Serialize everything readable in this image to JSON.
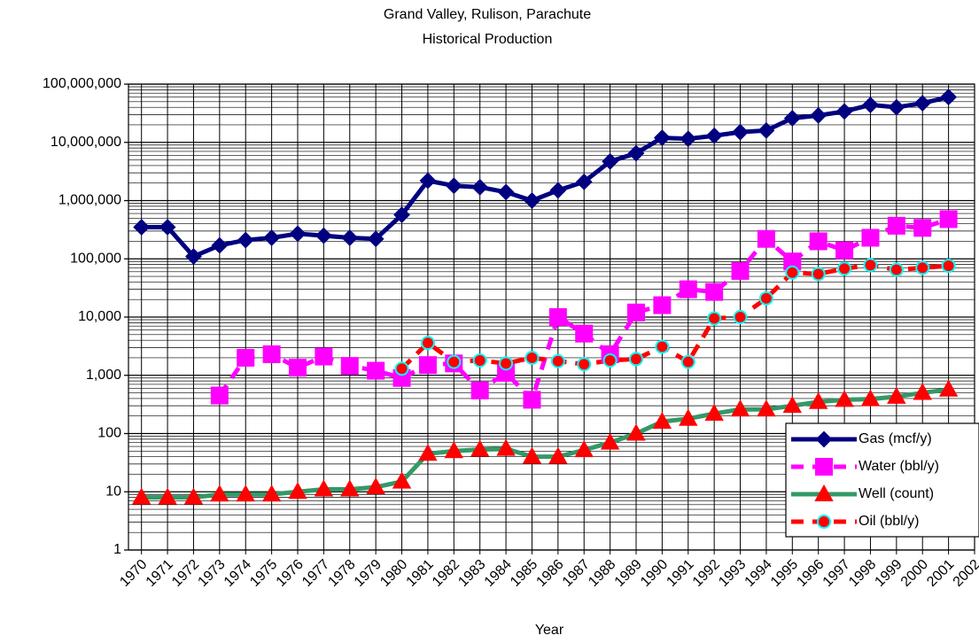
{
  "chart_data": {
    "type": "line",
    "title": "Grand Valley, Rulison, Parachute",
    "subtitle": "Historical Production",
    "x_label": "Year",
    "x": [
      1970,
      1971,
      1972,
      1973,
      1974,
      1975,
      1976,
      1977,
      1978,
      1979,
      1980,
      1981,
      1982,
      1983,
      1984,
      1985,
      1986,
      1987,
      1988,
      1989,
      1990,
      1991,
      1992,
      1993,
      1994,
      1995,
      1996,
      1997,
      1998,
      1999,
      2000,
      2001
    ],
    "xlim": [
      1969.5,
      2002
    ],
    "xticks": [
      1970,
      1971,
      1972,
      1973,
      1974,
      1975,
      1976,
      1977,
      1978,
      1979,
      1980,
      1981,
      1982,
      1983,
      1984,
      1985,
      1986,
      1987,
      1988,
      1989,
      1990,
      1991,
      1992,
      1993,
      1994,
      1995,
      1996,
      1997,
      1998,
      1999,
      2000,
      2001,
      2002
    ],
    "ylim": [
      1,
      100000000
    ],
    "yscale": "log",
    "yticks": [
      1,
      10,
      {
        "value": 100,
        "label": "100"
      },
      {
        "value": 1000,
        "label": "1,000"
      },
      {
        "value": 10000,
        "label": "10,000"
      },
      {
        "value": 100000,
        "label": "100,000"
      },
      {
        "value": 1000000,
        "label": "1,000,000"
      },
      {
        "value": 10000000,
        "label": "10,000,000"
      },
      {
        "value": 100000000,
        "label": "100,000,000"
      }
    ],
    "grid": true,
    "minor_grid": true,
    "legend": "lower right",
    "series": [
      {
        "name": "Gas (mcf/y)",
        "color": "#000080",
        "marker": "diamond",
        "marker_color": "#000080",
        "marker_edge": "#000080",
        "dashed": false,
        "values": [
          350000,
          350000,
          110000,
          170000,
          210000,
          230000,
          270000,
          250000,
          230000,
          220000,
          570000,
          2200000,
          1800000,
          1700000,
          1400000,
          1000000,
          1500000,
          2100000,
          4700000,
          6500000,
          12000000,
          11500000,
          13000000,
          15000000,
          16000000,
          26000000,
          29000000,
          34000000,
          44000000,
          40000000,
          47000000,
          60000000
        ]
      },
      {
        "name": "Water (bbl/y)",
        "color": "#FF00FF",
        "marker": "square",
        "marker_color": "#FF00FF",
        "marker_edge": "#FF00FF",
        "dashed": true,
        "values": [
          null,
          null,
          null,
          450,
          2000,
          2300,
          1350,
          2100,
          1450,
          1200,
          900,
          1500,
          1600,
          550,
          1100,
          380,
          10000,
          5200,
          2300,
          12000,
          16000,
          30000,
          27000,
          62000,
          220000,
          90000,
          200000,
          140000,
          230000,
          370000,
          340000,
          480000
        ]
      },
      {
        "name": "Well (count)",
        "color": "#339966",
        "marker": "triangle",
        "marker_color": "#FF0000",
        "marker_edge": "#FF0000",
        "dashed": false,
        "values": [
          8,
          8,
          8,
          9,
          9,
          9,
          10,
          11,
          11,
          12,
          15,
          45,
          50,
          53,
          55,
          40,
          40,
          52,
          70,
          100,
          160,
          180,
          220,
          260,
          260,
          300,
          350,
          380,
          390,
          430,
          500,
          570
        ]
      },
      {
        "name": "Oil (bbl/y)",
        "color": "#FF0000",
        "marker": "circle",
        "marker_color": "#FF0000",
        "marker_edge": "#00FFFF",
        "dashed": true,
        "values": [
          null,
          null,
          null,
          null,
          null,
          null,
          null,
          null,
          null,
          null,
          1300,
          3600,
          1700,
          1800,
          1600,
          2000,
          1750,
          1550,
          1800,
          1900,
          3100,
          1700,
          9500,
          10000,
          21000,
          58000,
          55000,
          68000,
          78000,
          65000,
          70000,
          76000
        ]
      }
    ]
  }
}
